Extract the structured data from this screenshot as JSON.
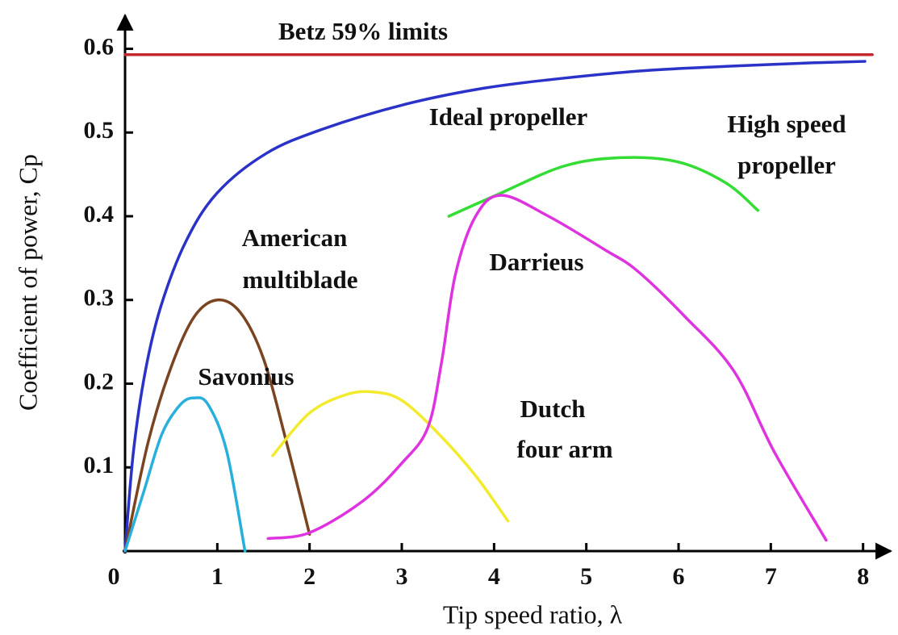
{
  "chart_data": {
    "type": "line",
    "xlabel": "Tip speed ratio, λ",
    "ylabel": "Coefficient of power, Cp",
    "xlim": [
      0,
      8.3
    ],
    "ylim": [
      0,
      0.64
    ],
    "xticks": [
      0,
      1,
      2,
      3,
      4,
      5,
      6,
      7,
      8
    ],
    "yticks": [
      0.1,
      0.2,
      0.3,
      0.4,
      0.5,
      0.6
    ],
    "annotations": [
      "Betz 59% limits",
      "Ideal propeller",
      "High speed",
      "propeller",
      "American",
      "multiblade",
      "Savonius",
      "Darrieus",
      "Dutch",
      "four arm"
    ],
    "series": [
      {
        "name": "Betz 59% limits",
        "color": "#c0282d",
        "x": [
          0,
          8.1
        ],
        "values": [
          0.593,
          0.593
        ]
      },
      {
        "name": "Ideal propeller",
        "color": "#2b32c8",
        "x": [
          0,
          0.09,
          0.22,
          0.39,
          0.66,
          1.0,
          1.53,
          2.14,
          3.01,
          3.89,
          4.76,
          5.64,
          6.51,
          7.39,
          8.02
        ],
        "values": [
          0,
          0.118,
          0.215,
          0.293,
          0.37,
          0.428,
          0.475,
          0.504,
          0.533,
          0.553,
          0.565,
          0.574,
          0.579,
          0.583,
          0.585
        ]
      },
      {
        "name": "High speed propeller",
        "color": "#33dd33",
        "x": [
          3.51,
          4.06,
          4.76,
          5.38,
          5.99,
          6.51,
          6.86
        ],
        "values": [
          0.4,
          0.427,
          0.46,
          0.47,
          0.465,
          0.44,
          0.407
        ]
      },
      {
        "name": "American multiblade",
        "color": "#7a4420",
        "x": [
          0,
          0.25,
          0.5,
          0.75,
          1,
          1.25,
          1.5,
          1.75,
          2
        ],
        "values": [
          0,
          0.13,
          0.22,
          0.28,
          0.3,
          0.285,
          0.23,
          0.13,
          0.02
        ]
      },
      {
        "name": "Savonius",
        "color": "#27b0dc",
        "x": [
          0,
          0.2,
          0.4,
          0.6,
          0.75,
          0.9,
          1.1,
          1.3
        ],
        "values": [
          0,
          0.07,
          0.14,
          0.175,
          0.183,
          0.175,
          0.12,
          0
        ]
      },
      {
        "name": "Dutch four arm",
        "color": "#f2ea2a",
        "x": [
          1.6,
          2,
          2.4,
          2.7,
          3,
          3.4,
          3.8,
          4.15
        ],
        "values": [
          0.114,
          0.165,
          0.187,
          0.19,
          0.18,
          0.14,
          0.09,
          0.036
        ]
      },
      {
        "name": "Darrieus",
        "color": "#e033e0",
        "x": [
          1.55,
          2,
          2.58,
          3.0,
          3.28,
          3.43,
          3.58,
          3.8,
          4.08,
          4.59,
          5.2,
          5.55,
          6.07,
          6.6,
          7.04,
          7.6
        ],
        "values": [
          0.015,
          0.022,
          0.06,
          0.105,
          0.147,
          0.225,
          0.33,
          0.4,
          0.425,
          0.4,
          0.36,
          0.335,
          0.28,
          0.215,
          0.118,
          0.013
        ]
      }
    ]
  }
}
